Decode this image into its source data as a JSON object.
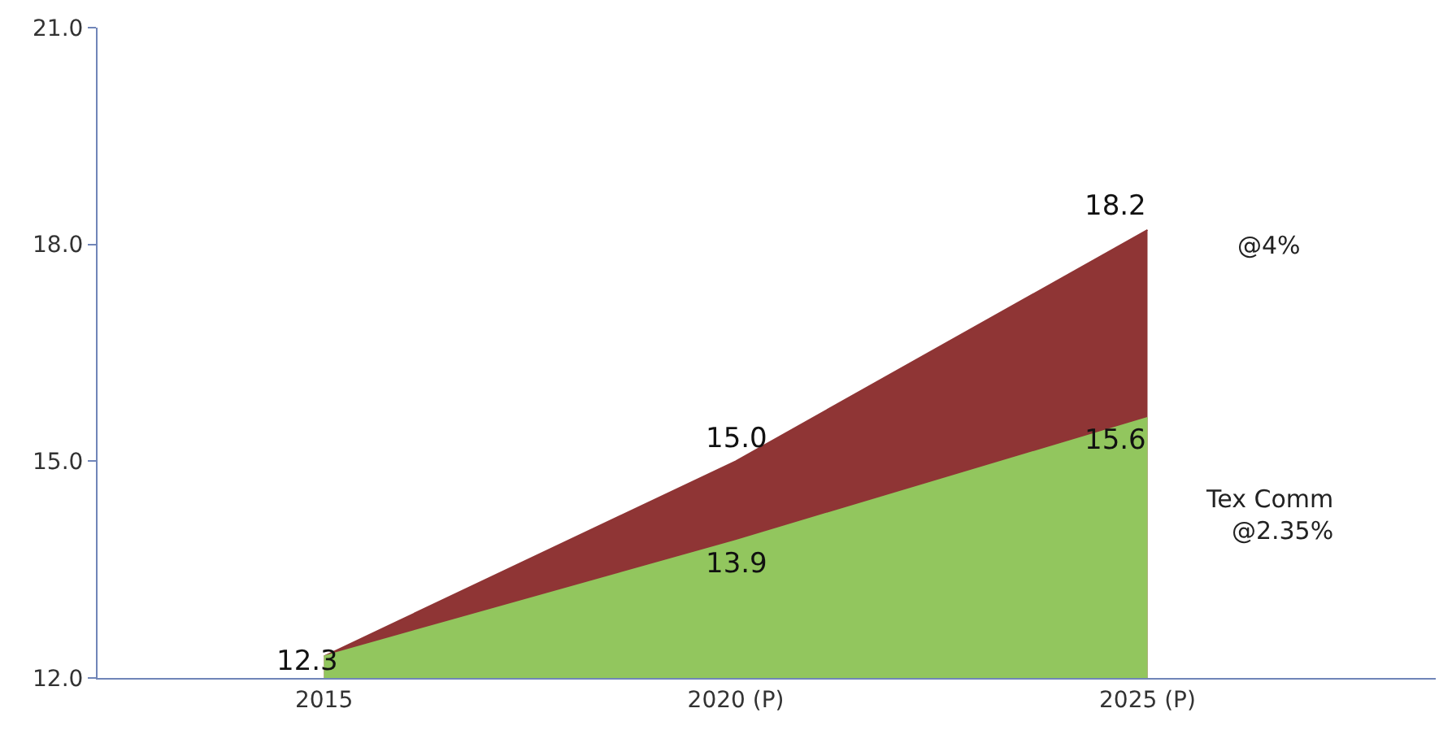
{
  "chart_data": {
    "type": "area",
    "categories": [
      "2015",
      "2020 (P)",
      "2025 (P)"
    ],
    "series": [
      {
        "name": "@4%",
        "color": "#8f3535",
        "values": [
          12.3,
          15.0,
          18.2
        ],
        "value_labels": [
          "12.3",
          "15.0",
          "18.2"
        ]
      },
      {
        "name": "Tex Comm @2.35%",
        "color": "#92c65e",
        "values": [
          12.3,
          13.9,
          15.6
        ],
        "value_labels": [
          null,
          "13.9",
          "15.6"
        ]
      }
    ],
    "ylim": [
      12,
      21
    ],
    "yticks": [
      {
        "value": 12,
        "label": "12.0"
      },
      {
        "value": 15,
        "label": "15.0"
      },
      {
        "value": 18,
        "label": "18.0"
      },
      {
        "value": 21,
        "label": "21.0"
      }
    ],
    "legend": false
  }
}
